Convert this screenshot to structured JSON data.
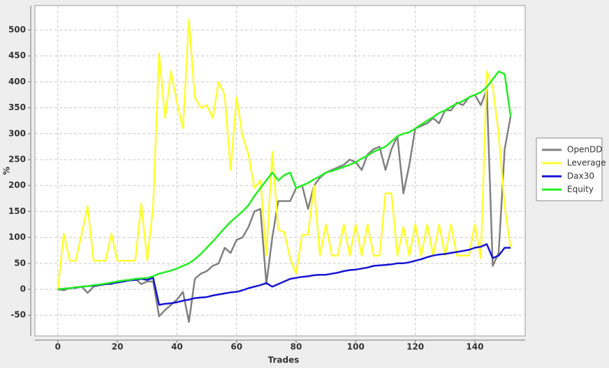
{
  "chart_data": {
    "type": "line",
    "x_label": "Trades",
    "y_label": "%",
    "x": [
      0,
      2,
      4,
      6,
      8,
      10,
      12,
      14,
      16,
      18,
      20,
      22,
      24,
      26,
      28,
      30,
      32,
      34,
      36,
      38,
      40,
      42,
      44,
      46,
      48,
      50,
      52,
      54,
      56,
      58,
      60,
      62,
      64,
      66,
      68,
      70,
      72,
      74,
      76,
      78,
      80,
      82,
      84,
      86,
      88,
      90,
      92,
      94,
      96,
      98,
      100,
      102,
      104,
      106,
      108,
      110,
      112,
      114,
      116,
      118,
      120,
      122,
      124,
      126,
      128,
      130,
      132,
      134,
      136,
      138,
      140,
      142,
      144,
      146,
      148,
      150,
      152
    ],
    "series": [
      {
        "name": "OpenDD",
        "color": "#808080",
        "values": [
          0,
          -2,
          2,
          3,
          5,
          -7,
          5,
          8,
          10,
          10,
          15,
          15,
          18,
          20,
          10,
          15,
          15,
          -52,
          -40,
          -30,
          -20,
          -5,
          -63,
          20,
          30,
          35,
          45,
          50,
          80,
          70,
          95,
          100,
          120,
          150,
          155,
          10,
          100,
          170,
          170,
          170,
          195,
          200,
          155,
          200,
          215,
          225,
          230,
          235,
          240,
          250,
          245,
          230,
          260,
          270,
          275,
          230,
          270,
          295,
          185,
          240,
          310,
          315,
          320,
          330,
          320,
          345,
          345,
          360,
          355,
          370,
          375,
          355,
          385,
          45,
          70,
          270,
          333
        ]
      },
      {
        "name": "Leverage",
        "color": "#ffff33",
        "values": [
          0,
          107,
          55,
          55,
          107,
          160,
          55,
          55,
          55,
          107,
          55,
          55,
          55,
          55,
          165,
          55,
          160,
          455,
          330,
          420,
          360,
          310,
          520,
          370,
          350,
          355,
          330,
          400,
          375,
          230,
          370,
          295,
          260,
          195,
          210,
          65,
          265,
          115,
          110,
          60,
          30,
          105,
          105,
          200,
          65,
          125,
          65,
          65,
          125,
          65,
          125,
          65,
          125,
          65,
          65,
          185,
          185,
          65,
          120,
          65,
          125,
          65,
          125,
          65,
          125,
          65,
          125,
          65,
          65,
          65,
          125,
          60,
          420,
          390,
          300,
          160,
          80
        ]
      },
      {
        "name": "Dax30",
        "color": "#1414d2",
        "values": [
          0,
          1,
          2,
          3,
          5,
          6,
          7,
          8,
          10,
          11,
          13,
          15,
          17,
          18,
          20,
          18,
          22,
          -30,
          -28,
          -27,
          -25,
          -22,
          -20,
          -17,
          -16,
          -15,
          -12,
          -10,
          -8,
          -6,
          -5,
          -2,
          2,
          5,
          8,
          12,
          5,
          10,
          15,
          20,
          22,
          24,
          25,
          27,
          28,
          28,
          30,
          32,
          35,
          37,
          38,
          40,
          42,
          45,
          46,
          47,
          48,
          50,
          50,
          52,
          55,
          58,
          62,
          65,
          67,
          68,
          70,
          72,
          74,
          76,
          80,
          82,
          87,
          60,
          65,
          80,
          80
        ]
      },
      {
        "name": "Equity",
        "color": "#22ee22",
        "values": [
          0,
          1,
          2,
          4,
          5,
          6,
          8,
          9,
          11,
          13,
          15,
          17,
          18,
          20,
          21,
          22,
          25,
          30,
          33,
          36,
          40,
          45,
          50,
          58,
          68,
          80,
          92,
          105,
          118,
          130,
          140,
          150,
          162,
          180,
          195,
          210,
          225,
          210,
          220,
          225,
          195,
          200,
          205,
          212,
          218,
          225,
          228,
          232,
          236,
          240,
          245,
          252,
          258,
          265,
          270,
          275,
          285,
          295,
          300,
          303,
          310,
          318,
          325,
          332,
          340,
          345,
          352,
          358,
          363,
          370,
          375,
          380,
          390,
          405,
          420,
          415,
          333
        ]
      }
    ],
    "xlim": [
      -7.7,
      156.9
    ],
    "xticks": [
      0,
      20,
      40,
      60,
      80,
      100,
      120,
      140
    ],
    "ylim": [
      -90,
      547
    ],
    "yticks": [
      -50,
      0,
      50,
      100,
      150,
      200,
      250,
      300,
      350,
      400,
      450,
      500
    ],
    "grid": true,
    "legend": "right"
  }
}
